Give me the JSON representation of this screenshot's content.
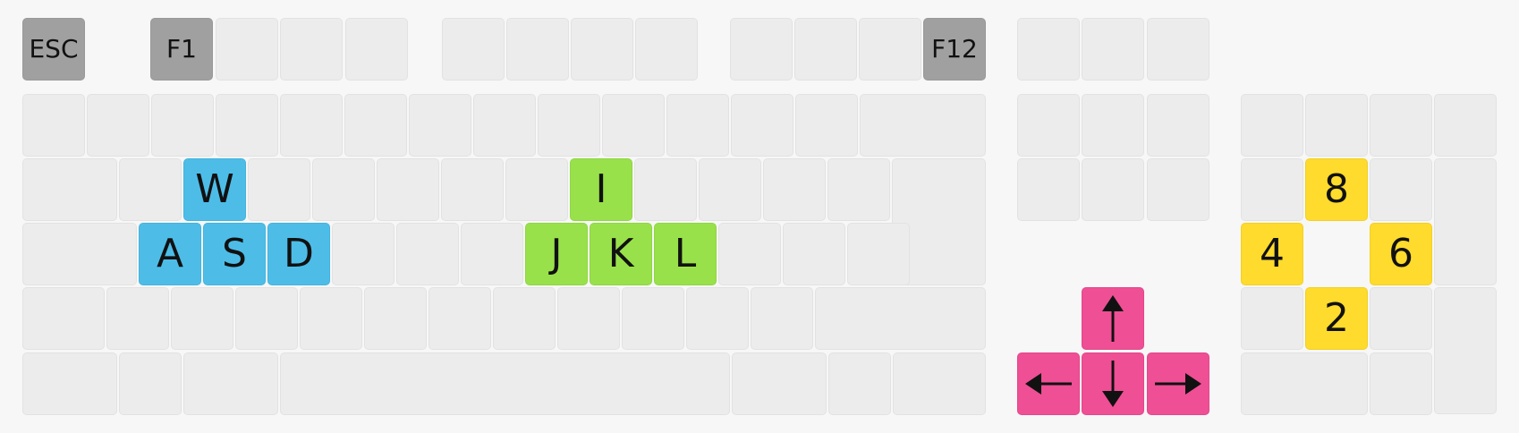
{
  "keyboard": {
    "function_row": {
      "esc": "ESC",
      "f1": "F1",
      "f12": "F12"
    },
    "wasd": {
      "w": "W",
      "a": "A",
      "s": "S",
      "d": "D"
    },
    "ijkl": {
      "i": "I",
      "j": "J",
      "k": "K",
      "l": "L"
    },
    "numpad": {
      "eight": "8",
      "four": "4",
      "six": "6",
      "two": "2"
    },
    "arrows": [
      "up",
      "left",
      "down",
      "right"
    ],
    "colors": {
      "base": "#ececec",
      "function_highlight": "#a0a0a0",
      "wasd": "#4dbde8",
      "ijkl": "#99e14a",
      "numpad": "#fedb2c",
      "arrows": "#ef4f94"
    },
    "icons": {
      "up": "arrow-up-icon",
      "left": "arrow-left-icon",
      "down": "arrow-down-icon",
      "right": "arrow-right-icon"
    }
  }
}
